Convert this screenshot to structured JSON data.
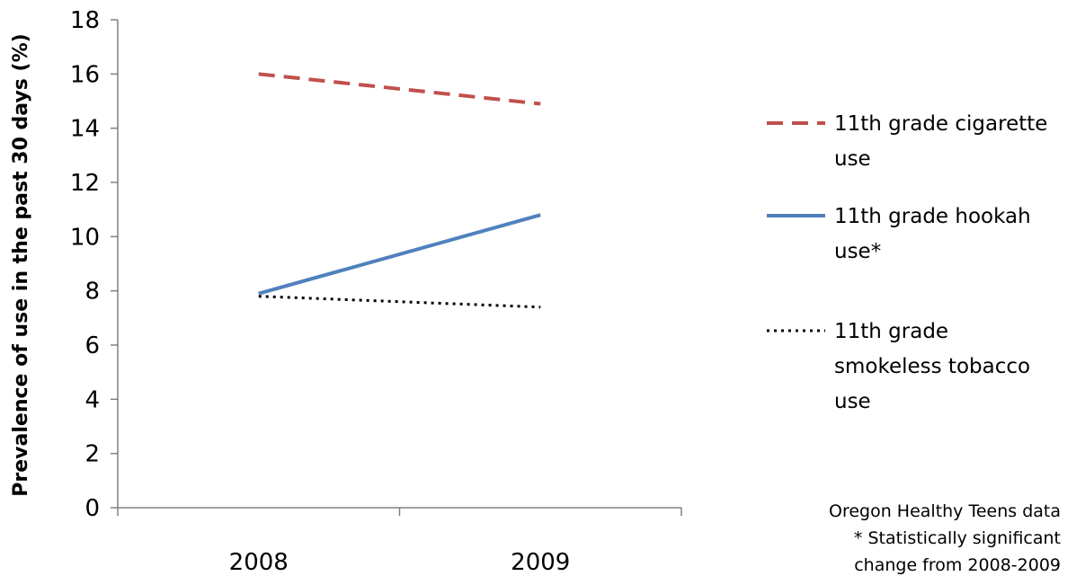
{
  "chart_data": {
    "type": "line",
    "categories": [
      "2008",
      "2009"
    ],
    "ylabel": "Prevalence of use in the past 30 days (%)",
    "ylim": [
      0,
      18
    ],
    "yticks": [
      0,
      2,
      4,
      6,
      8,
      10,
      12,
      14,
      16,
      18
    ],
    "grid": false,
    "legend_position": "right",
    "series": [
      {
        "name_lines": [
          "11th grade cigarette",
          "use"
        ],
        "values": [
          16.0,
          14.9
        ],
        "color": "#c0504d",
        "style": "dashed"
      },
      {
        "name_lines": [
          "11th grade hookah",
          "use*"
        ],
        "values": [
          7.9,
          10.8
        ],
        "color": "#4f81bd",
        "style": "solid"
      },
      {
        "name_lines": [
          "11th grade",
          "smokeless tobacco",
          "use"
        ],
        "values": [
          7.8,
          7.4
        ],
        "color": "#000000",
        "style": "dotted"
      }
    ],
    "notes": [
      "Oregon Healthy Teens data",
      "* Statistically significant",
      "change from 2008-2009"
    ]
  }
}
